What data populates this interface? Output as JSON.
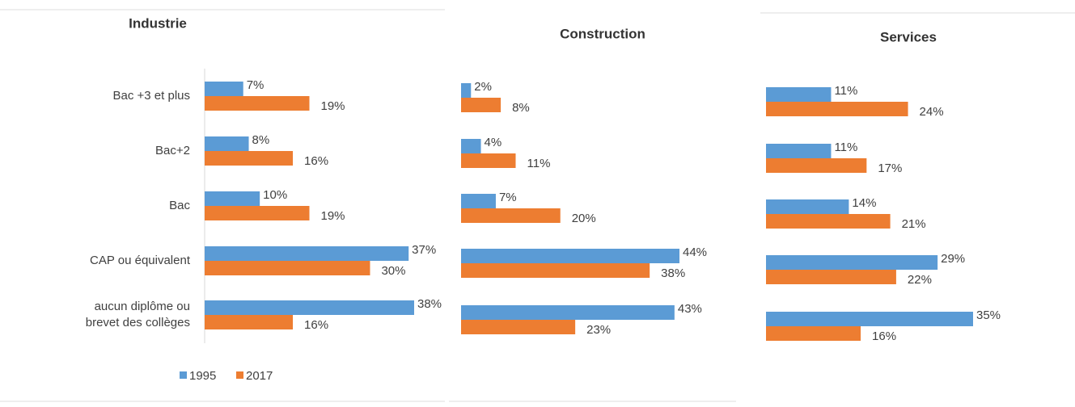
{
  "chart_data": [
    {
      "type": "bar",
      "title": "Industrie",
      "categories": [
        "Bac +3 et plus",
        "Bac+2",
        "Bac",
        "CAP ou équivalent",
        "aucun diplôme ou brevet des  collèges"
      ],
      "series": [
        {
          "name": "1995",
          "color": "#5b9bd5",
          "values": [
            7,
            8,
            10,
            37,
            38
          ],
          "value_labels": [
            "7%",
            "8%",
            "10%",
            "37%",
            "38%"
          ]
        },
        {
          "name": "2017",
          "color": "#ed7d31",
          "values": [
            19,
            16,
            19,
            30,
            16
          ],
          "value_labels": [
            "19%",
            "16%",
            "19%",
            "30%",
            "16%"
          ]
        }
      ],
      "legend": "bottom"
    },
    {
      "type": "bar",
      "title": "Construction",
      "series": [
        {
          "color": "#5b9bd5",
          "values": [
            2,
            4,
            7,
            44,
            43
          ],
          "value_labels": [
            "2%",
            "4%",
            "7%",
            "44%",
            "43%"
          ]
        },
        {
          "color": "#ed7d31",
          "values": [
            8,
            11,
            20,
            38,
            23
          ],
          "value_labels": [
            "8%",
            "11%",
            "20%",
            "38%",
            "23%"
          ]
        }
      ]
    },
    {
      "type": "bar",
      "title": "Services",
      "series": [
        {
          "color": "#5b9bd5",
          "values": [
            11,
            11,
            14,
            29,
            35
          ],
          "value_labels": [
            "11%",
            "11%",
            "14%",
            "29%",
            "35%"
          ]
        },
        {
          "color": "#ed7d31",
          "values": [
            24,
            17,
            21,
            22,
            16
          ],
          "value_labels": [
            "24%",
            "17%",
            "21%",
            "22%",
            "16%"
          ]
        }
      ]
    }
  ]
}
